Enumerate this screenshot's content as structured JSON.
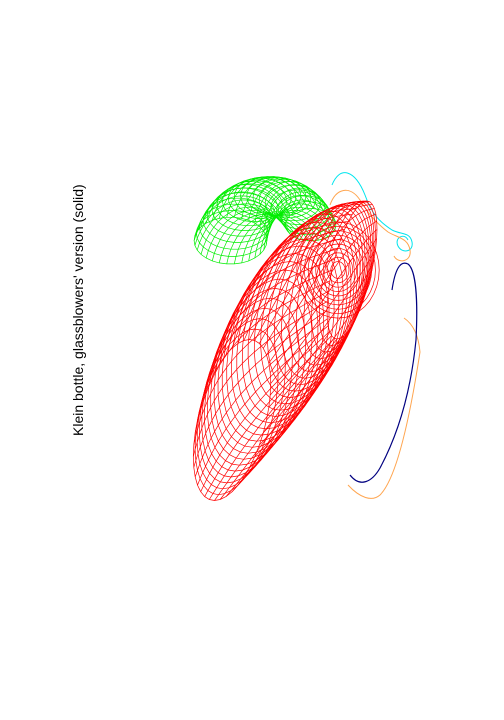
{
  "title": "Klein bottle, glassblowers' version (solid)",
  "colors": {
    "background": "#ffffff",
    "title": "#000000",
    "body_mesh": "#ff0000",
    "neck_mesh": "#00ee00",
    "outline_cyan": "#00e5ee",
    "outline_orange": "#ffa54f",
    "outline_navy": "#000080"
  },
  "surface": {
    "type": "parametric-wireframe",
    "name": "Klein bottle, glassblowers' version",
    "style": "solid (hidden lines removed)",
    "parts": [
      "body",
      "neck"
    ]
  }
}
